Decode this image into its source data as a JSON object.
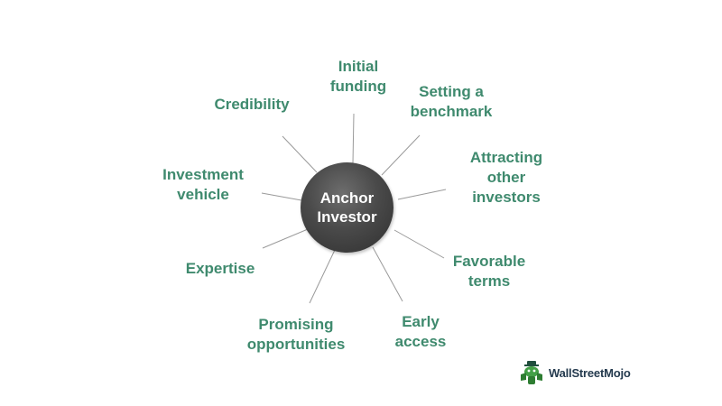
{
  "diagram": {
    "center": "Anchor\nInvestor",
    "spokes": [
      "Initial\nfunding",
      "Setting a\nbenchmark",
      "Attracting\nother\ninvestors",
      "Favorable\nterms",
      "Early\naccess",
      "Promising\nopportunities",
      "Expertise",
      "Investment\nvehicle",
      "Credibility"
    ]
  },
  "brand": {
    "name": "WallStreetMojo",
    "icon": "wallstreetmojo-logo-icon"
  },
  "colors": {
    "label": "#3f8a6e",
    "hub": "#3d3d3d",
    "connector": "#9a9a9a"
  }
}
